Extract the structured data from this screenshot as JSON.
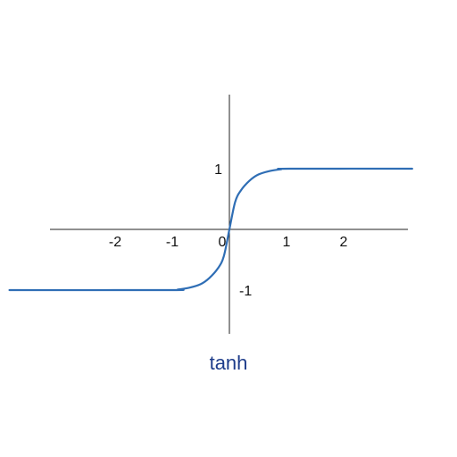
{
  "caption": "tanh",
  "colors": {
    "curve": "#2f6eb5",
    "axis": "#222222",
    "caption": "#1d3c8a"
  },
  "chart_data": {
    "type": "line",
    "title": "",
    "xlabel": "",
    "ylabel": "",
    "x_ticks": [
      {
        "value": -2,
        "label": "-2"
      },
      {
        "value": -1,
        "label": "-1"
      },
      {
        "value": 0,
        "label": "0"
      },
      {
        "value": 1,
        "label": "1"
      },
      {
        "value": 2,
        "label": "2"
      }
    ],
    "y_ticks": [
      {
        "value": 1,
        "label": "1"
      },
      {
        "value": -1,
        "label": "-1"
      }
    ],
    "xlim": [
      -3.85,
      3.2
    ],
    "ylim": [
      -1.77,
      2.3
    ],
    "grid": false,
    "series": [
      {
        "x": [
          -3.85,
          -1.05,
          -0.9,
          -0.7,
          -0.5,
          -0.35,
          -0.2,
          -0.1,
          0,
          0.1,
          0.2,
          0.35,
          0.5,
          0.7,
          0.9,
          1.05,
          3.2
        ],
        "y": [
          -1,
          -1,
          -0.99,
          -0.96,
          -0.9,
          -0.8,
          -0.64,
          -0.45,
          0,
          0.45,
          0.64,
          0.8,
          0.9,
          0.96,
          0.99,
          1,
          1
        ]
      }
    ]
  }
}
